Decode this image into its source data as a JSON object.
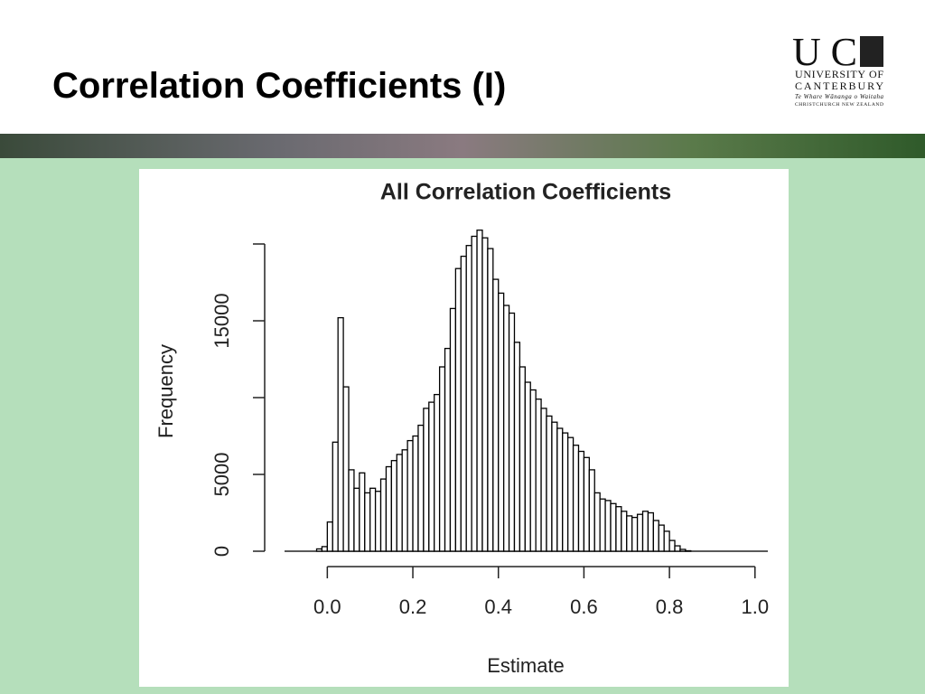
{
  "slide": {
    "title": "Correlation Coefficients (I)",
    "logo": {
      "letters": "UC",
      "name_line1": "UNIVERSITY OF",
      "name_line2": "CANTERBURY",
      "motto": "Te Whare Wānanga o Waitaha",
      "location": "CHRISTCHURCH NEW ZEALAND"
    }
  },
  "chart_data": {
    "type": "histogram",
    "title": "All Correlation Coefficients",
    "x_label": "Estimate",
    "y_label": "Frequency",
    "bins": [
      -0.025,
      -0.0125,
      0,
      0.0125,
      0.025,
      0.0375,
      0.05,
      0.0625,
      0.075,
      0.0875,
      0.1,
      0.1125,
      0.125,
      0.1375,
      0.15,
      0.1625,
      0.175,
      0.1875,
      0.2,
      0.2125,
      0.225,
      0.2375,
      0.25,
      0.2625,
      0.275,
      0.2875,
      0.3,
      0.3125,
      0.325,
      0.3375,
      0.35,
      0.3625,
      0.375,
      0.3875,
      0.4,
      0.4125,
      0.425,
      0.4375,
      0.45,
      0.4625,
      0.475,
      0.4875,
      0.5,
      0.5125,
      0.525,
      0.5375,
      0.55,
      0.5625,
      0.575,
      0.5875,
      0.6,
      0.6125,
      0.625,
      0.6375,
      0.65,
      0.6625,
      0.675,
      0.6875,
      0.7,
      0.7125,
      0.725,
      0.7375,
      0.75,
      0.7625,
      0.775,
      0.7875,
      0.8,
      0.8125,
      0.825,
      0.8375,
      0.85
    ],
    "values": [
      150,
      300,
      1900,
      7100,
      15200,
      10700,
      5300,
      4100,
      5100,
      3800,
      4100,
      3900,
      4700,
      5500,
      5900,
      6300,
      6600,
      7200,
      7500,
      8200,
      9300,
      9700,
      10200,
      12000,
      13200,
      15800,
      18400,
      19200,
      19900,
      20500,
      20900,
      20400,
      19700,
      17700,
      16800,
      16000,
      15500,
      13600,
      12000,
      11000,
      10500,
      9900,
      9300,
      8800,
      8400,
      8000,
      7700,
      7400,
      6900,
      6500,
      6100,
      5300,
      3800,
      3400,
      3300,
      3100,
      2900,
      2600,
      2300,
      2200,
      2400,
      2600,
      2500,
      2000,
      1700,
      1300,
      700,
      350,
      120,
      30
    ],
    "color": "#ffffff",
    "edge_color": "#000000",
    "xlim": [
      -0.1,
      1.03
    ],
    "xticks": [
      {
        "value": 0,
        "label": "0.0"
      },
      0.2,
      0.4,
      0.6,
      0.8,
      {
        "value": 1,
        "label": "1.0"
      }
    ],
    "ylim": [
      0,
      21500
    ],
    "yticks": [
      0,
      5000,
      {
        "value": 10000,
        "label": null
      },
      15000,
      {
        "value": 20000,
        "label": null
      }
    ]
  }
}
